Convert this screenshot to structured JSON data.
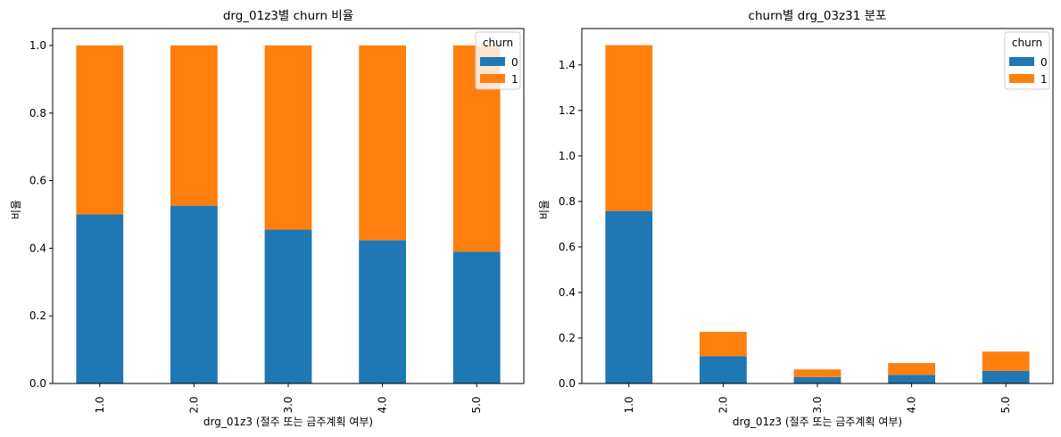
{
  "chart_data": [
    {
      "type": "bar",
      "stacked": true,
      "title": "drg_01z3별 churn 비율",
      "xlabel": "drg_01z3 (절주 또는 금주계획 여부)",
      "ylabel": "비율",
      "categories": [
        "1.0",
        "2.0",
        "3.0",
        "4.0",
        "5.0"
      ],
      "series": [
        {
          "name": "0",
          "values": [
            0.5,
            0.526,
            0.455,
            0.424,
            0.39
          ],
          "color": "#1f77b4"
        },
        {
          "name": "1",
          "values": [
            0.5,
            0.474,
            0.545,
            0.576,
            0.61
          ],
          "color": "#ff7f0e"
        }
      ],
      "ylim": [
        0,
        1.05
      ],
      "yticks": [
        "0.0",
        "0.2",
        "0.4",
        "0.6",
        "0.8",
        "1.0"
      ],
      "legend": {
        "title": "churn",
        "position": "top-right"
      },
      "grid": false
    },
    {
      "type": "bar",
      "stacked": true,
      "title": "churn별 drg_03z31 분포",
      "xlabel": "drg_01z3 (절주 또는 금주계획 여부)",
      "ylabel": "비율",
      "categories": [
        "1.0",
        "2.0",
        "3.0",
        "4.0",
        "5.0"
      ],
      "series": [
        {
          "name": "0",
          "values": [
            0.758,
            0.12,
            0.028,
            0.038,
            0.055
          ],
          "color": "#1f77b4"
        },
        {
          "name": "1",
          "values": [
            0.729,
            0.107,
            0.034,
            0.052,
            0.085
          ],
          "color": "#ff7f0e"
        }
      ],
      "ylim": [
        0,
        1.56
      ],
      "yticks": [
        "0.0",
        "0.2",
        "0.4",
        "0.6",
        "0.8",
        "1.0",
        "1.2",
        "1.4"
      ],
      "legend": {
        "title": "churn",
        "position": "top-right"
      },
      "grid": false
    }
  ]
}
